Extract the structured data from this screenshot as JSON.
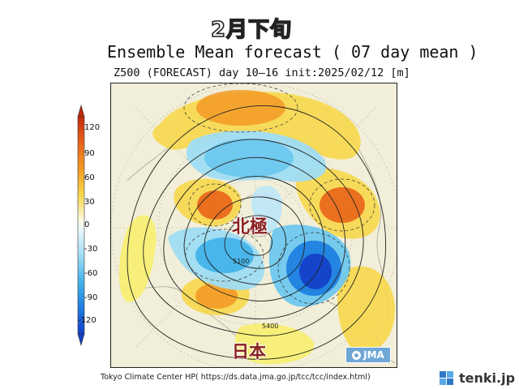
{
  "overlay_title": "2月下旬",
  "title": "Ensemble Mean forecast ( 07 day mean )",
  "subtitle": "Z500 (FORECAST) day 10–16 init:2025/02/12  [m]",
  "colorbar": {
    "ticks": [
      "120",
      "90",
      "60",
      "30",
      "0",
      "-30",
      "-60",
      "-90",
      "-120"
    ],
    "colors": [
      "#d84a12",
      "#f08a1e",
      "#f7c13a",
      "#f7ee6e",
      "#fdfbe6",
      "#bfe6f7",
      "#6ec7ee",
      "#2f9fe5",
      "#1a55d6"
    ]
  },
  "map": {
    "labels": {
      "arctic": "北極",
      "japan": "日本"
    },
    "contour_labels": [
      "5100",
      "5400"
    ],
    "badge": "JMA"
  },
  "footer": {
    "credit": "Tokyo Climate Center HP( https://ds.data.jma.go.jp/tcc/tcc/index.html)",
    "brand": "tenki.jp"
  },
  "colors": {
    "ocean_bg": "#f1eed9",
    "positive_strong": "#e8641a",
    "positive": "#f7c13a",
    "negative": "#6ec7ee",
    "negative_strong": "#1a55d6"
  }
}
